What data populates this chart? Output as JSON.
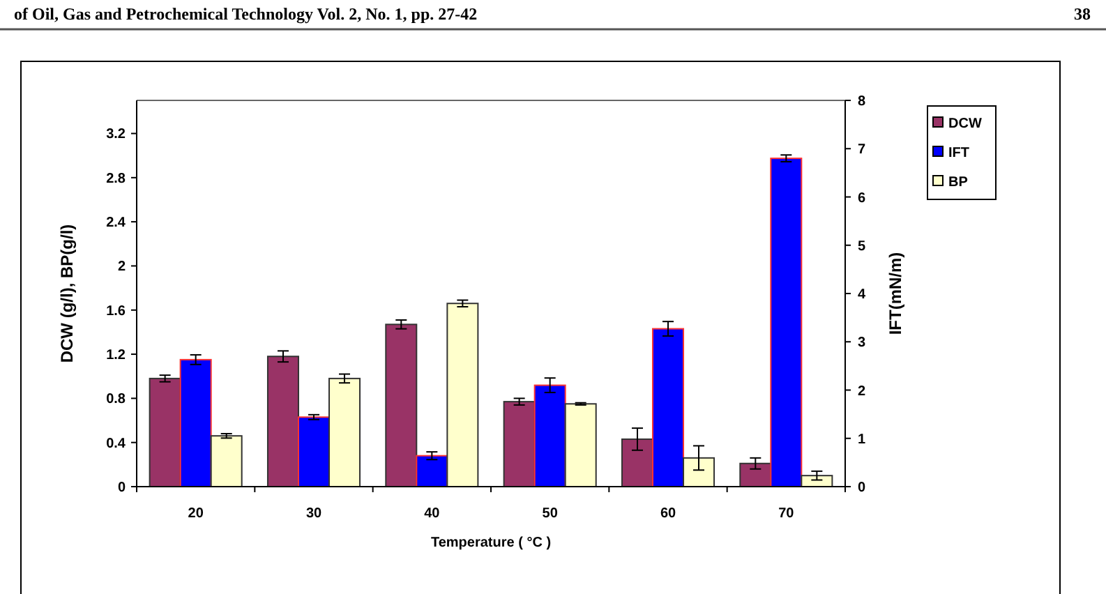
{
  "chart_data": {
    "type": "bar",
    "xlabel": "Temperature ( °C )",
    "ylabel": "DCW (g/l), BP(g/l)",
    "y2label": "IFT(mN/m)",
    "annotations": [
      "of Oil, Gas and Petrochemical Technology Vol. 2, No. 1, pp. 27-42",
      "38"
    ],
    "categories": [
      "20",
      "30",
      "40",
      "50",
      "60",
      "70"
    ],
    "series": [
      {
        "name": "DCW",
        "color": "#993366",
        "values": [
          0.98,
          1.18,
          1.47,
          0.77,
          0.43,
          0.21
        ],
        "errors": [
          0.03,
          0.05,
          0.04,
          0.03,
          0.1,
          0.05
        ]
      },
      {
        "name": "IFT",
        "color": "#0000ff",
        "axis": "y2",
        "values": [
          2.63,
          1.44,
          0.64,
          2.1,
          3.27,
          6.8
        ],
        "errors": [
          0.1,
          0.05,
          0.08,
          0.15,
          0.15,
          0.07
        ]
      },
      {
        "name": "BP",
        "color": "#ffffcc",
        "values": [
          0.46,
          0.98,
          1.66,
          0.75,
          0.26,
          0.1
        ],
        "errors": [
          0.02,
          0.04,
          0.03,
          0.01,
          0.11,
          0.04
        ]
      }
    ],
    "ylim": [
      0,
      3.5
    ],
    "yticks": [
      0,
      0.4,
      0.8,
      1.2,
      1.6,
      2,
      2.4,
      2.8,
      3.2
    ],
    "y2lim": [
      0,
      8
    ],
    "y2ticks": [
      0,
      1,
      2,
      3,
      4,
      5,
      6,
      7,
      8
    ],
    "legend": "right",
    "grid": false
  }
}
